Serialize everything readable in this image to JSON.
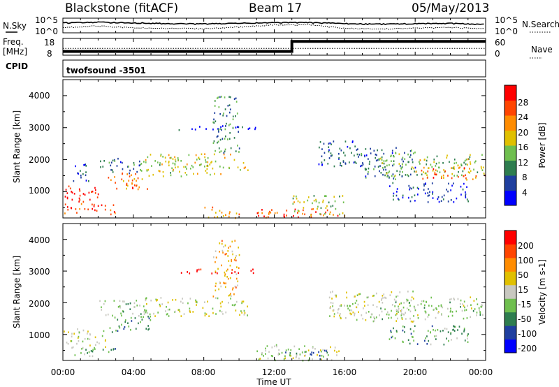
{
  "header": {
    "station": "Blackstone (fitACF)",
    "beam": "Beam 17",
    "date": "05/May/2013"
  },
  "noise_panel": {
    "left_label": "N.Sky",
    "right_label": "N.Search",
    "ticks_left": [
      "10^5",
      "10^0"
    ],
    "ticks_right": [
      "10^5",
      "10^0"
    ]
  },
  "freq_panel": {
    "left_label_line1": "Freq.",
    "left_label_line2": "[MHz]",
    "right_label": "Nave",
    "ticks_left": [
      "18",
      "8"
    ],
    "ticks_right": [
      "60",
      "0"
    ]
  },
  "cpid": {
    "label": "CPID",
    "value": "twofsound -3501"
  },
  "power_panel": {
    "ylabel": "Slant Range [km]",
    "yticks": [
      "4000",
      "3000",
      "2000",
      "1000"
    ],
    "colorbar_label": "Power [dB]",
    "colorbar_ticks": [
      "28",
      "24",
      "20",
      "16",
      "12",
      "8",
      "4"
    ],
    "colors": [
      "#0000ff",
      "#1f3f9f",
      "#2e7d4f",
      "#6fbf4f",
      "#e0c000",
      "#ff8c00",
      "#ff4500",
      "#ff0000"
    ]
  },
  "velocity_panel": {
    "ylabel": "Slant Range [km]",
    "yticks": [
      "4000",
      "3000",
      "2000",
      "1000"
    ],
    "colorbar_label": "Velocity [m s-1]",
    "colorbar_ticks": [
      "200",
      "100",
      "50",
      "15",
      "-15",
      "-50",
      "-100",
      "-200"
    ],
    "colors": [
      "#0000ff",
      "#1f3f9f",
      "#2e7d4f",
      "#6fbf4f",
      "#c8c8c0",
      "#e0c000",
      "#ff8c00",
      "#ff4500",
      "#ff0000"
    ]
  },
  "xaxis": {
    "ticks": [
      "00:00",
      "04:00",
      "08:00",
      "12:00",
      "16:00",
      "20:00",
      "00:00"
    ],
    "label": "Time UT"
  },
  "chart_data": [
    {
      "type": "line",
      "title": "N.Sky / N.Search",
      "x_unit": "hours UT",
      "y_scale": "log",
      "ylim": [
        1,
        100000
      ],
      "series": [
        {
          "name": "N.Sky",
          "x": [
            0,
            2,
            4,
            6,
            8,
            10,
            12,
            14,
            16,
            18,
            20,
            22,
            24
          ],
          "y": [
            3000,
            5000,
            3000,
            1500,
            1200,
            2000,
            3500,
            4000,
            1500,
            1000,
            1500,
            1800,
            800
          ]
        },
        {
          "name": "N.Search",
          "x": [
            0,
            2,
            4,
            6,
            8,
            10,
            12,
            14,
            16,
            18,
            20,
            22,
            24
          ],
          "y": [
            60,
            200,
            40,
            25,
            20,
            80,
            500,
            600,
            25,
            15,
            30,
            60,
            15
          ]
        }
      ]
    },
    {
      "type": "line",
      "title": "Freq. [MHz] / Nave",
      "x_unit": "hours UT",
      "series": [
        {
          "name": "Freq. [MHz]",
          "x": [
            0,
            13.0,
            13.0,
            24
          ],
          "y": [
            10,
            10,
            16.5,
            16.5
          ]
        },
        {
          "name": "Nave",
          "x": [
            0,
            24
          ],
          "y": [
            24,
            24
          ]
        }
      ]
    },
    {
      "type": "heatmap",
      "title": "Power [dB]",
      "xlabel": "Time UT",
      "ylabel": "Slant Range [km]",
      "xlim": [
        0,
        24
      ],
      "ylim": [
        180,
        4500
      ],
      "colorbar": {
        "label": "Power [dB]",
        "range": [
          0,
          30
        ]
      },
      "regions": [
        {
          "t": [
            0,
            2.2
          ],
          "r": [
            700,
            1200
          ],
          "value": 28
        },
        {
          "t": [
            0,
            3
          ],
          "r": [
            300,
            650
          ],
          "value": 24
        },
        {
          "t": [
            2.5,
            5
          ],
          "r": [
            1100,
            1600
          ],
          "value": 22
        },
        {
          "t": [
            4.5,
            10.5
          ],
          "r": [
            1500,
            2200
          ],
          "value": 16
        },
        {
          "t": [
            2,
            4.5
          ],
          "r": [
            1600,
            2100
          ],
          "value": 8
        },
        {
          "t": [
            0.5,
            1.5
          ],
          "r": [
            1300,
            1900
          ],
          "value": 6
        },
        {
          "t": [
            6,
            11
          ],
          "r": [
            2950,
            3080
          ],
          "value": 4
        },
        {
          "t": [
            8.5,
            10
          ],
          "r": [
            2200,
            4000
          ],
          "value": 10
        },
        {
          "t": [
            8,
            10
          ],
          "r": [
            200,
            550
          ],
          "value": 20
        },
        {
          "t": [
            11,
            16
          ],
          "r": [
            200,
            500
          ],
          "value": 24
        },
        {
          "t": [
            13,
            16
          ],
          "r": [
            300,
            900
          ],
          "value": 14
        },
        {
          "t": [
            14.5,
            17
          ],
          "r": [
            1800,
            2600
          ],
          "value": 6
        },
        {
          "t": [
            16.5,
            20
          ],
          "r": [
            1400,
            2400
          ],
          "value": 8
        },
        {
          "t": [
            18,
            24
          ],
          "r": [
            1500,
            2200
          ],
          "value": 14
        },
        {
          "t": [
            20,
            24
          ],
          "r": [
            1400,
            1800
          ],
          "value": 22
        },
        {
          "t": [
            18.5,
            23
          ],
          "r": [
            700,
            1300
          ],
          "value": 6
        }
      ]
    },
    {
      "type": "heatmap",
      "title": "Velocity [m s-1]",
      "xlabel": "Time UT",
      "ylabel": "Slant Range [km]",
      "xlim": [
        0,
        24
      ],
      "ylim": [
        180,
        4500
      ],
      "colorbar": {
        "label": "Velocity [m s-1]",
        "range": [
          -200,
          200
        ]
      },
      "regions": [
        {
          "t": [
            0,
            2.5
          ],
          "r": [
            600,
            1200
          ],
          "value": 0
        },
        {
          "t": [
            0.5,
            3
          ],
          "r": [
            300,
            600
          ],
          "value": -60
        },
        {
          "t": [
            2.5,
            5
          ],
          "r": [
            1100,
            1600
          ],
          "value": -80
        },
        {
          "t": [
            4.5,
            10.5
          ],
          "r": [
            1600,
            2200
          ],
          "value": 0
        },
        {
          "t": [
            2,
            4.5
          ],
          "r": [
            1600,
            2100
          ],
          "value": -40
        },
        {
          "t": [
            6,
            11
          ],
          "r": [
            2950,
            3080
          ],
          "value": 200
        },
        {
          "t": [
            8.5,
            10
          ],
          "r": [
            2200,
            4000
          ],
          "value": 60
        },
        {
          "t": [
            11,
            16
          ],
          "r": [
            200,
            700
          ],
          "value": 0
        },
        {
          "t": [
            12.5,
            15
          ],
          "r": [
            250,
            550
          ],
          "value": -80
        },
        {
          "t": [
            15,
            20
          ],
          "r": [
            1400,
            2400
          ],
          "value": 0
        },
        {
          "t": [
            18,
            24
          ],
          "r": [
            1500,
            2200
          ],
          "value": -20
        },
        {
          "t": [
            18.5,
            23
          ],
          "r": [
            700,
            1300
          ],
          "value": -70
        }
      ]
    }
  ]
}
